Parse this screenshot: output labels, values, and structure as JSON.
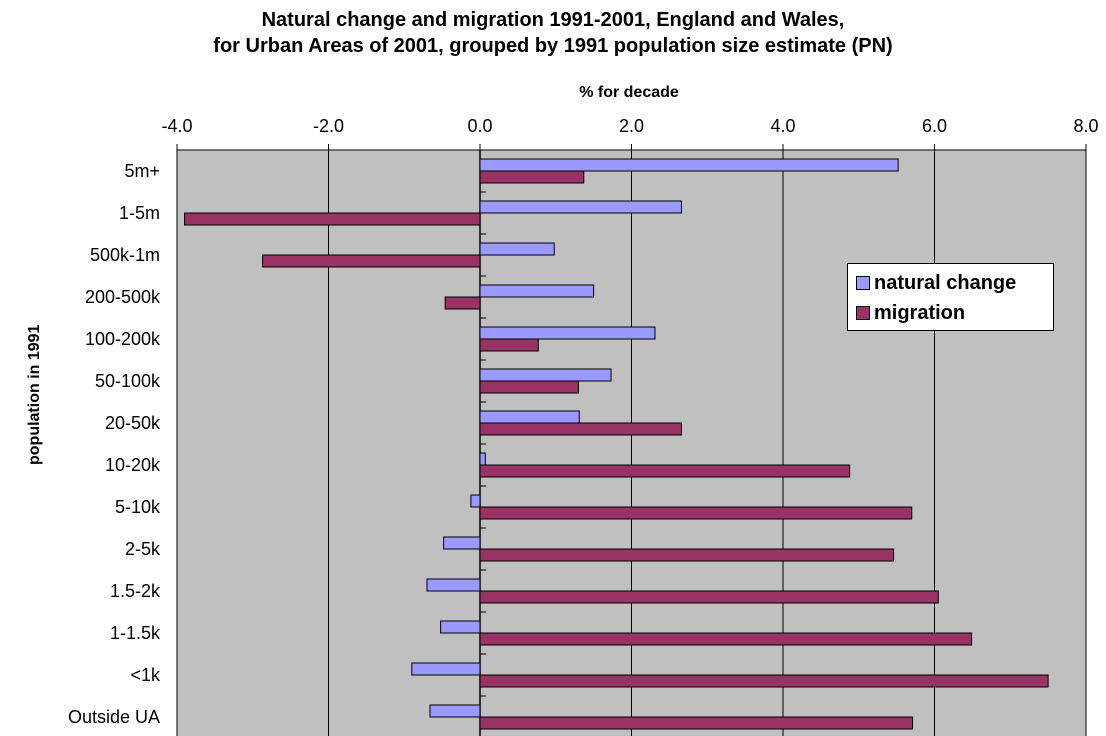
{
  "title_line1": "Natural change and migration 1991-2001, England and Wales,",
  "title_line2": "for Urban Areas of 2001, grouped by 1991 population size estimate (PN)",
  "chart_data": {
    "type": "bar",
    "orientation": "horizontal",
    "title": "Natural change and migration 1991-2001, England and Wales, for Urban Areas of 2001, grouped by 1991 population size estimate (PN)",
    "xlabel": "% for decade",
    "ylabel": "population in 1991",
    "xlim": [
      -4.0,
      8.0
    ],
    "xticks": [
      "-4.0",
      "-2.0",
      "0.0",
      "2.0",
      "4.0",
      "6.0",
      "8.0"
    ],
    "xtick_values": [
      -4,
      -2,
      0,
      2,
      4,
      6,
      8
    ],
    "categories": [
      "5m+",
      "1-5m",
      "500k-1m",
      "200-500k",
      "100-200k",
      "50-100k",
      "20-50k",
      "10-20k",
      "5-10k",
      "2-5k",
      "1.5-2k",
      "1-1.5k",
      "<1k",
      "Outside UA"
    ],
    "series": [
      {
        "name": "natural change",
        "color": "#9999FF",
        "values": [
          5.52,
          2.66,
          0.98,
          1.5,
          2.31,
          1.73,
          1.31,
          0.07,
          -0.12,
          -0.48,
          -0.7,
          -0.52,
          -0.9,
          -0.66
        ]
      },
      {
        "name": "migration",
        "color": "#993366",
        "values": [
          1.37,
          -3.9,
          -2.87,
          -0.46,
          0.77,
          1.3,
          2.66,
          4.88,
          5.7,
          5.46,
          6.05,
          6.49,
          7.5,
          5.71
        ]
      }
    ],
    "grid": "vertical",
    "plot_background": "#C0C0C0",
    "legend_position": "right"
  }
}
